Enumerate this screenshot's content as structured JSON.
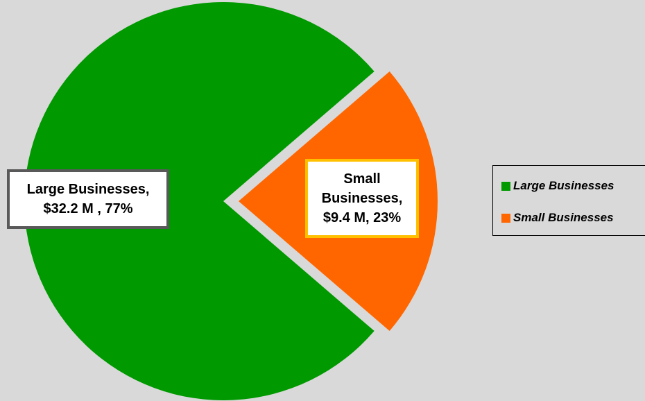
{
  "chart_data": {
    "type": "pie",
    "categories": [
      "Large Businesses",
      "Small Businesses"
    ],
    "values": [
      32.2,
      9.4
    ],
    "percentages": [
      77,
      23
    ],
    "colors": [
      "#009900",
      "#ff6600"
    ],
    "data_labels": [
      [
        "Large Businesses,",
        "$32.2 M , 77%"
      ],
      [
        "Small",
        "Businesses,",
        "$9.4 M, 23%"
      ]
    ],
    "exploded": "Small Businesses",
    "legend": {
      "placement": "right",
      "items": [
        {
          "label": "Large Businesses",
          "color": "#009900"
        },
        {
          "label": "Small Businesses",
          "color": "#ff6600"
        }
      ]
    }
  }
}
